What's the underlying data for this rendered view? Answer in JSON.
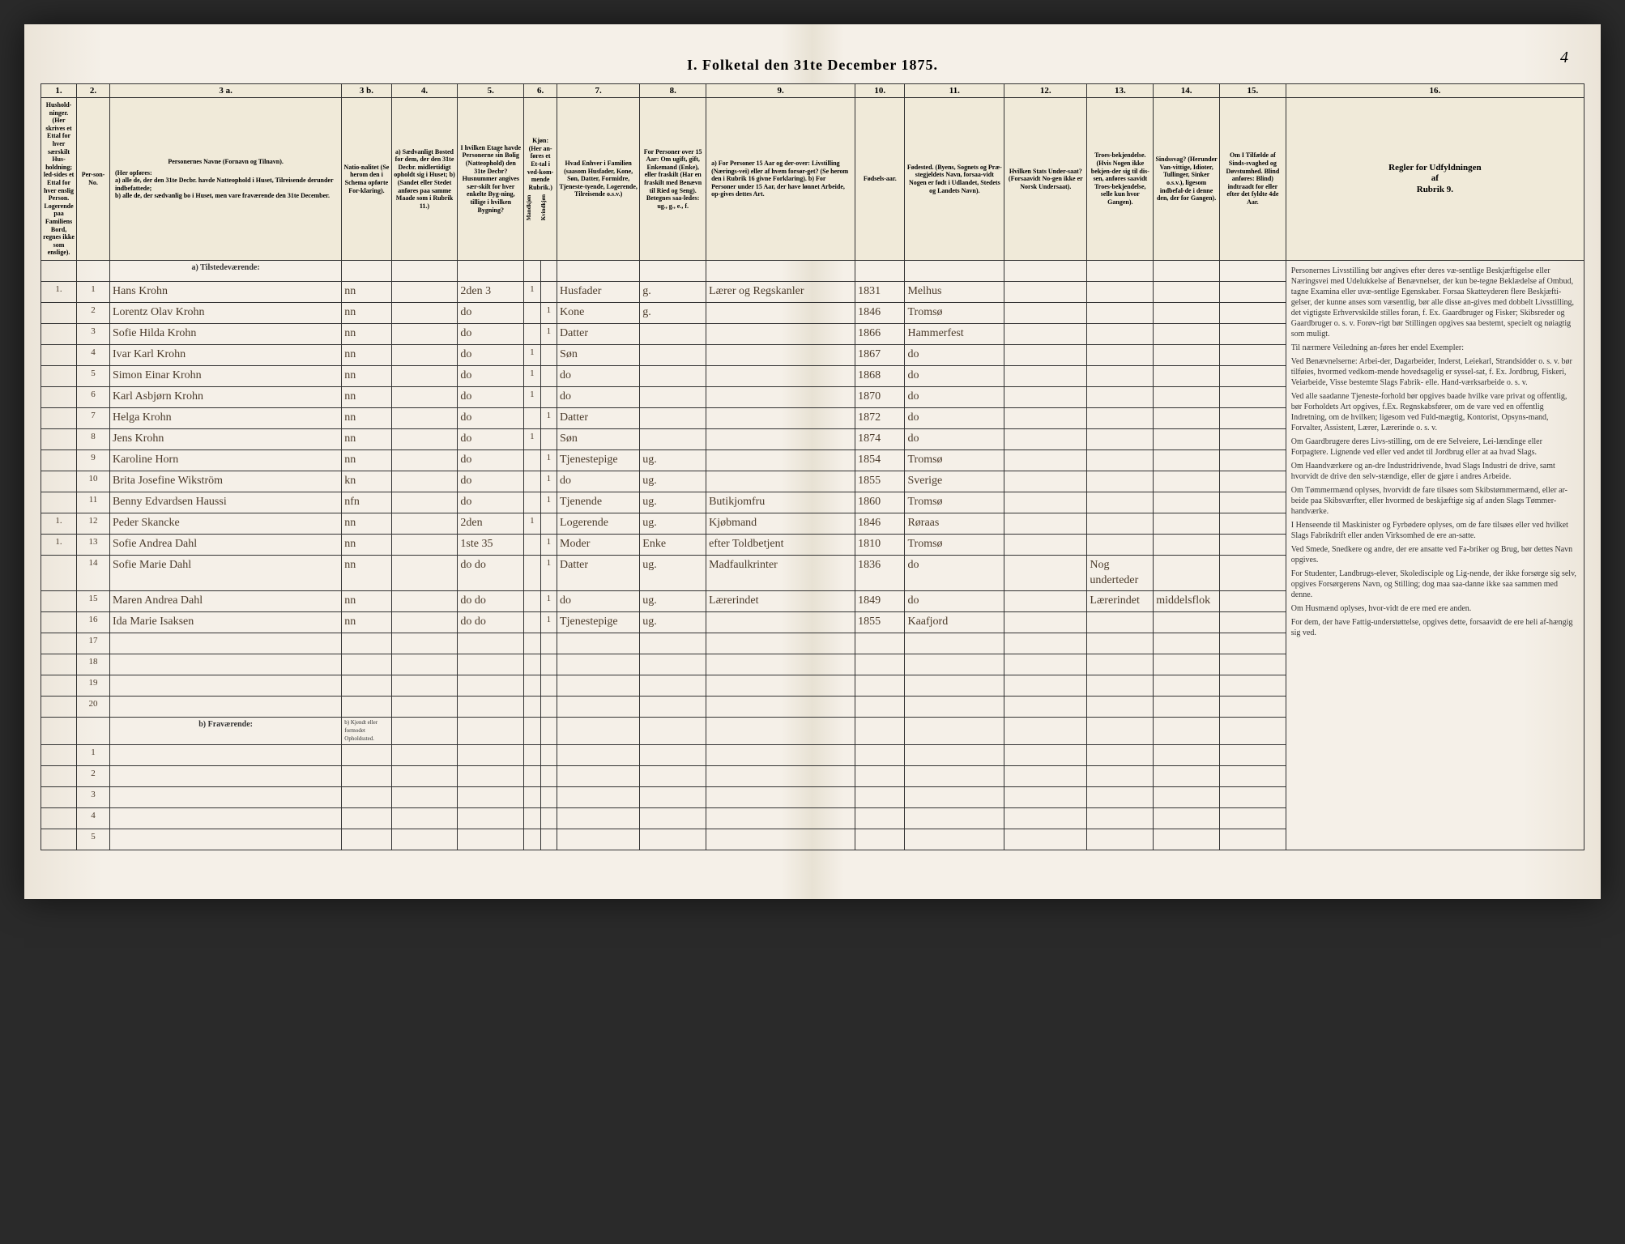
{
  "meta": {
    "title": "I. Folketal den 31te December 1875.",
    "page_number": "4"
  },
  "columns": {
    "nums": [
      "1.",
      "2.",
      "3 a.",
      "3 b.",
      "4.",
      "5.",
      "6.",
      "7.",
      "8.",
      "9.",
      "10.",
      "11.",
      "12.",
      "13.",
      "14.",
      "15.",
      "16."
    ],
    "heads": {
      "c1": "Hushold-ninger. (Her skrives et Ettal for hver særskilt Hus-holdning; led-sides et Ettal for hver enslig Person. Logerende paa Familiens Bord, regnes ikke som enslige).",
      "c2": "Per-son-No.",
      "c3a_title": "Personernes Navne (Fornavn og Tilnavn).",
      "c3a_sub": "(Her opføres:\na) alle de, der den 31te Decbr. havde Natteophold i Huset, Tilreisende derunder indbefattede;\nb) alle de, der sædvanlig bo i Huset, men vare fraværende den 31te December.",
      "c3b": "Natio-nalitet (Se herom den i Schema opførte For-klaring).",
      "c4": "a) Sædvanligt Bosted for dem, der den 31te Decbr. midlertidigt opholdt sig i Huset;\nb) (Sandet eller Stedet anføres paa samme Maade som i Rubrik 11.)",
      "c5": "I hvilken Etage havde Personerne sin Bolig (Natteophold) den 31te Decbr?\nHusnummer angives sær-skilt for hver enkelte Byg-ning, tillige i hvilken Bygning?",
      "c6": "Kjøn: (Her an-føres et Et-tal i ved-kom-mende Rubrik.)",
      "c6a": "Mandkjøn",
      "c6b": "Kvindkjøn",
      "c7": "Hvad Enhver i Familien (saasom Husfader, Kone, Søn, Datter, Formidre, Tjeneste-tyende, Logerende, Tilreisende o.s.v.)",
      "c8": "For Personer over 15 Aar: Om ugift, gift, Enkemand (Enke), eller fraskilt (Har en fraskilt med Benævn til Ried og Seng). Betegnes saa-ledes: ug., g., e., f.",
      "c9": "a) For Personer 15 Aar og der-over: Livstilling (Nærings-vei) eller af hvem forsør-get? (Se herom den i Rubrik 16 givne Forklaring).\nb) For Personer under 15 Aar, der have lønnet Arbeide, op-gives dettes Art.",
      "c10": "Fødsels-aar.",
      "c11": "Fødested.\n(Byens, Sognets og Præ-stegjeldets Navn, forsaa-vidt Nogen er født i Udlandet, Stedets og Landets Navn).",
      "c12": "Hvilken Stats Under-saat?\n(Forsaavidt No-gen ikke er Norsk Undersaat).",
      "c13": "Troes-bekjendelse. (Hvis Nogen ikke bekjen-der sig til dis-sen, anføres saavidt Troes-bekjendelse, selle kun hvor Gangen).",
      "c14": "Sindssvag? (Herunder Van-vittige, Idioter, Tullinger, Sinker o.s.v.), ligesom indbefal-de i denne den, der for Gangen).",
      "c15": "Om I Tilfælde af Sinds-svaghed og Døvstumhed. Blind anføres: Blind) indtraadt for eller efter det fyldte 4de Aar.",
      "c16_title": "Regler for Udfyldningen\naf\nRubrik 9."
    }
  },
  "section_a": "a) Tilstedeværende:",
  "section_b": "b) Fraværende:",
  "section_3b": "b) Kjendt eller formodet Opholdssted.",
  "rows": [
    {
      "h": "1.",
      "n": "1",
      "name": "Hans Krohn",
      "nat": "nn",
      "bo": "",
      "et": "2den 3",
      "mk": "1",
      "kk": "",
      "fam": "Husfader",
      "ms": "g.",
      "liv": "Lærer og Regskanler",
      "aar": "1831",
      "sted": "Melhus",
      "stat": "",
      "tro": "",
      "sind": "",
      "blind": ""
    },
    {
      "h": "",
      "n": "2",
      "name": "Lorentz Olav Krohn",
      "nat": "nn",
      "bo": "",
      "et": "do",
      "mk": "",
      "kk": "1",
      "fam": "Kone",
      "ms": "g.",
      "liv": "",
      "aar": "1846",
      "sted": "Tromsø",
      "stat": "",
      "tro": "",
      "sind": "",
      "blind": ""
    },
    {
      "h": "",
      "n": "3",
      "name": "Sofie Hilda Krohn",
      "nat": "nn",
      "bo": "",
      "et": "do",
      "mk": "",
      "kk": "1",
      "fam": "Datter",
      "ms": "",
      "liv": "",
      "aar": "1866",
      "sted": "Hammerfest",
      "stat": "",
      "tro": "",
      "sind": "",
      "blind": ""
    },
    {
      "h": "",
      "n": "4",
      "name": "Ivar Karl Krohn",
      "nat": "nn",
      "bo": "",
      "et": "do",
      "mk": "1",
      "kk": "",
      "fam": "Søn",
      "ms": "",
      "liv": "",
      "aar": "1867",
      "sted": "do",
      "stat": "",
      "tro": "",
      "sind": "",
      "blind": ""
    },
    {
      "h": "",
      "n": "5",
      "name": "Simon Einar Krohn",
      "nat": "nn",
      "bo": "",
      "et": "do",
      "mk": "1",
      "kk": "",
      "fam": "do",
      "ms": "",
      "liv": "",
      "aar": "1868",
      "sted": "do",
      "stat": "",
      "tro": "",
      "sind": "",
      "blind": ""
    },
    {
      "h": "",
      "n": "6",
      "name": "Karl Asbjørn Krohn",
      "nat": "nn",
      "bo": "",
      "et": "do",
      "mk": "1",
      "kk": "",
      "fam": "do",
      "ms": "",
      "liv": "",
      "aar": "1870",
      "sted": "do",
      "stat": "",
      "tro": "",
      "sind": "",
      "blind": ""
    },
    {
      "h": "",
      "n": "7",
      "name": "Helga Krohn",
      "nat": "nn",
      "bo": "",
      "et": "do",
      "mk": "",
      "kk": "1",
      "fam": "Datter",
      "ms": "",
      "liv": "",
      "aar": "1872",
      "sted": "do",
      "stat": "",
      "tro": "",
      "sind": "",
      "blind": ""
    },
    {
      "h": "",
      "n": "8",
      "name": "Jens Krohn",
      "nat": "nn",
      "bo": "",
      "et": "do",
      "mk": "1",
      "kk": "",
      "fam": "Søn",
      "ms": "",
      "liv": "",
      "aar": "1874",
      "sted": "do",
      "stat": "",
      "tro": "",
      "sind": "",
      "blind": ""
    },
    {
      "h": "",
      "n": "9",
      "name": "Karoline Horn",
      "nat": "nn",
      "bo": "",
      "et": "do",
      "mk": "",
      "kk": "1",
      "fam": "Tjenestepige",
      "ms": "ug.",
      "liv": "",
      "aar": "1854",
      "sted": "Tromsø",
      "stat": "",
      "tro": "",
      "sind": "",
      "blind": ""
    },
    {
      "h": "",
      "n": "10",
      "name": "Brita Josefine Wikström",
      "nat": "kn",
      "bo": "",
      "et": "do",
      "mk": "",
      "kk": "1",
      "fam": "do",
      "ms": "ug.",
      "liv": "",
      "aar": "1855",
      "sted": "Sverige",
      "stat": "",
      "tro": "",
      "sind": "",
      "blind": ""
    },
    {
      "h": "",
      "n": "11",
      "name": "Benny Edvardsen Haussi",
      "nat": "nfn",
      "bo": "",
      "et": "do",
      "mk": "",
      "kk": "1",
      "fam": "Tjenende",
      "ms": "ug.",
      "liv": "Butikjomfru",
      "aar": "1860",
      "sted": "Tromsø",
      "stat": "",
      "tro": "",
      "sind": "",
      "blind": ""
    },
    {
      "h": "1.",
      "n": "12",
      "name": "Peder Skancke",
      "nat": "nn",
      "bo": "",
      "et": "2den",
      "mk": "1",
      "kk": "",
      "fam": "Logerende",
      "ms": "ug.",
      "liv": "Kjøbmand",
      "aar": "1846",
      "sted": "Røraas",
      "stat": "",
      "tro": "",
      "sind": "",
      "blind": ""
    },
    {
      "h": "1.",
      "n": "13",
      "name": "Sofie Andrea Dahl",
      "nat": "nn",
      "bo": "",
      "et": "1ste 35",
      "mk": "",
      "kk": "1",
      "fam": "Moder",
      "ms": "Enke",
      "liv": "efter Toldbetjent",
      "aar": "1810",
      "sted": "Tromsø",
      "stat": "",
      "tro": "",
      "sind": "",
      "blind": ""
    },
    {
      "h": "",
      "n": "14",
      "name": "Sofie Marie Dahl",
      "nat": "nn",
      "bo": "",
      "et": "do do",
      "mk": "",
      "kk": "1",
      "fam": "Datter",
      "ms": "ug.",
      "liv": "Madfaulkrinter",
      "aar": "1836",
      "sted": "do",
      "stat": "",
      "tro": "Nog underteder",
      "sind": "",
      "blind": ""
    },
    {
      "h": "",
      "n": "15",
      "name": "Maren Andrea Dahl",
      "nat": "nn",
      "bo": "",
      "et": "do do",
      "mk": "",
      "kk": "1",
      "fam": "do",
      "ms": "ug.",
      "liv": "Lærerindet",
      "aar": "1849",
      "sted": "do",
      "stat": "",
      "tro": "Lærerindet",
      "sind": "middelsflok",
      "blind": ""
    },
    {
      "h": "",
      "n": "16",
      "name": "Ida Marie Isaksen",
      "nat": "nn",
      "bo": "",
      "et": "do do",
      "mk": "",
      "kk": "1",
      "fam": "Tjenestepige",
      "ms": "ug.",
      "liv": "",
      "aar": "1855",
      "sted": "Kaafjord",
      "stat": "",
      "tro": "",
      "sind": "",
      "blind": ""
    }
  ],
  "empty_rows_a": [
    "17",
    "18",
    "19",
    "20"
  ],
  "empty_rows_b": [
    "1",
    "2",
    "3",
    "4",
    "5"
  ],
  "rules_text": [
    "Personernes Livsstilling bør angives efter deres væ-sentlige Beskjæftigelse eller Næringsvei med Udelukkelse af Benævnelser, der kun be-tegne Beklædelse af Ombud, tagne Examina eller uvæ-sentlige Egenskaber. Forsaa Skatteyderen flere Beskjæfti-gelser, der kunne anses som væsentlig, bør alle disse an-gives med dobbelt Livsstilling, det vigtigste Erhvervskilde stilles foran, f. Ex. Gaardbruger og Fisker; Skibsreder og Gaardbruger o. s. v. Forøv-rigt bør Stillingen opgives saa bestemt, specielt og nøiagtig som muligt.",
    "Til nærmere Veiledning an-føres her endel Exempler:",
    "Ved Benævnelserne: Arbei-der, Dagarbeider, Inderst, Leiekarl, Strandsidder o. s. v. bør tilføies, hvormed vedkom-mende hovedsagelig er syssel-sat, f. Ex. Jordbrug, Fiskeri, Veiarbeide, Visse bestemte Slags Fabrik- elle. Hand-værksarbeide o. s. v.",
    "Ved alle saadanne Tjeneste-forhold bør opgives baade hvilke vare privat og offentlig, bør Forholdets Art opgives, f.Ex. Regnskabsfører, om de vare ved en offentlig Indretning, om de hvilken; ligesom ved Fuld-mægtig, Kontorist, Opsyns-mand, Forvalter, Assistent, Lærer, Lærerinde o. s. v.",
    "Om Gaardbrugere deres Livs-stilling, om de ere Selveiere, Lei-lændinge eller Forpagtere. Lignende ved eller ved andet til Jordbrug eller at aa hvad Slags.",
    "Om Haandværkere og an-dre Industridrivende, hvad Slags Industri de drive, samt hvorvidt de drive den selv-stændige, eller de gjøre i andres Arbeide.",
    "Om Tømmermænd oplyses, hvorvidt de fare tilsøes som Skibstømmermænd, eller ar-beide paa Skibsværfter, eller hvormed de beskjæftige sig af anden Slags Tømmer-handværke.",
    "I Henseende til Maskinister og Fyrbødere oplyses, om de fare tilsøes eller ved hvilket Slags Fabrikdrift eller anden Virksomhed de ere an-satte.",
    "Ved Smede, Snedkere og andre, der ere ansatte ved Fa-briker og Brug, bør dettes Navn opgives.",
    "For Studenter, Landbrugs-elever, Skoledisciple og Lig-nende, der ikke forsørge sig selv, opgives Forsørgerens Navn, og Stilling; dog maa saa-danne ikke saa sammen med denne.",
    "Om Husmænd oplyses, hvor-vidt de ere med ere anden.",
    "For dem, der have Fattig-understøttelse, opgives dette, forsaavidt de ere heli af-hængig sig ved."
  ],
  "colors": {
    "paper": "#f5f0e8",
    "ink": "#333333",
    "handwriting": "#4a3a2a",
    "border": "#333333"
  }
}
